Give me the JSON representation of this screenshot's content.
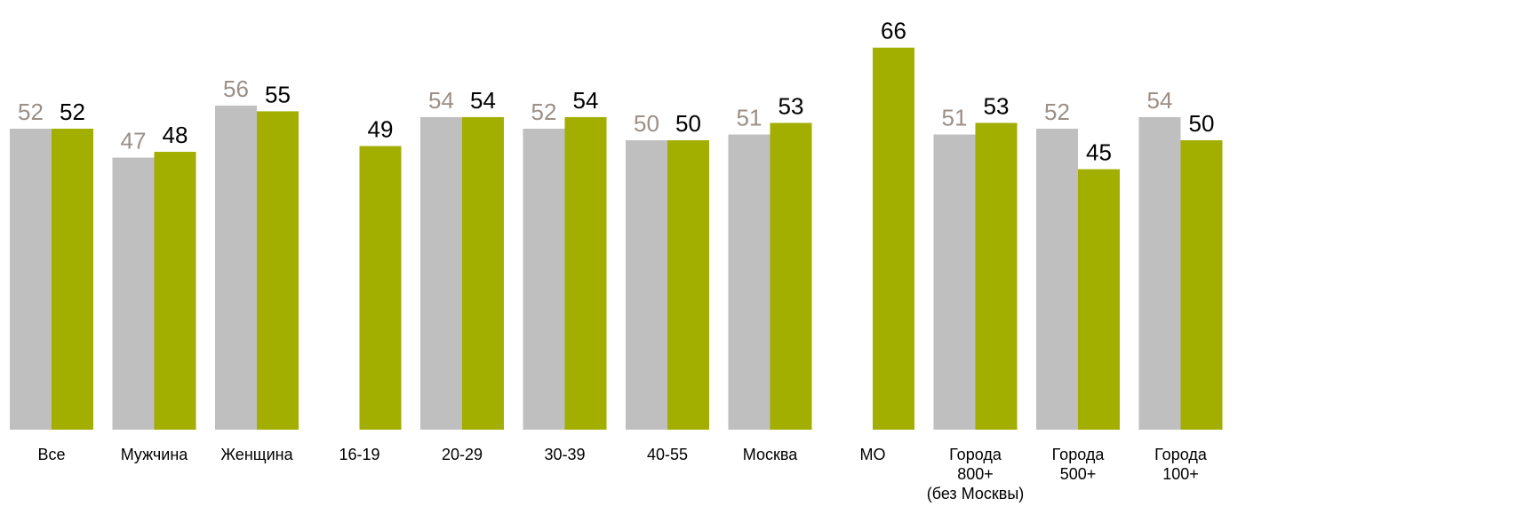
{
  "chart_data": {
    "type": "bar",
    "title": "",
    "xlabel": "",
    "ylabel": "",
    "ylim": [
      0,
      70
    ],
    "grid": false,
    "legend": "none",
    "colors": {
      "series_1": "#bfbfbf",
      "series_2": "#a2ae00",
      "label_series_1": "#9b8f87",
      "label_series_2": "#000000"
    },
    "groups": [
      {
        "name": "total",
        "categories": [
          {
            "lines": [
              "Все"
            ],
            "values": [
              52,
              52
            ]
          }
        ]
      },
      {
        "name": "gender",
        "categories": [
          {
            "lines": [
              "Мужчина"
            ],
            "values": [
              47,
              48
            ]
          },
          {
            "lines": [
              "Женщина"
            ],
            "values": [
              56,
              55
            ]
          }
        ]
      },
      {
        "name": "age",
        "categories": [
          {
            "lines": [
              "16-19"
            ],
            "values": [
              null,
              49
            ]
          },
          {
            "lines": [
              "20-29"
            ],
            "values": [
              54,
              54
            ]
          },
          {
            "lines": [
              "30-39"
            ],
            "values": [
              52,
              54
            ]
          },
          {
            "lines": [
              "40-55"
            ],
            "values": [
              50,
              50
            ]
          }
        ]
      },
      {
        "name": "region",
        "categories": [
          {
            "lines": [
              "Москва"
            ],
            "values": [
              51,
              53
            ]
          },
          {
            "lines": [
              "МО"
            ],
            "values": [
              null,
              66
            ]
          },
          {
            "lines": [
              "Города",
              "800+",
              "(без Москвы)"
            ],
            "values": [
              51,
              53
            ]
          },
          {
            "lines": [
              "Города",
              "500+"
            ],
            "values": [
              52,
              45
            ]
          },
          {
            "lines": [
              "Города",
              "100+"
            ],
            "values": [
              54,
              50
            ]
          }
        ]
      }
    ]
  }
}
